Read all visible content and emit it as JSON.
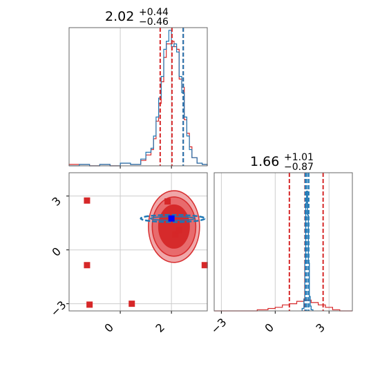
{
  "titles": {
    "param1": {
      "value": "2.02",
      "plus": "+0.44",
      "minus": "−0.46"
    },
    "param2": {
      "value": "1.66",
      "plus": "+1.01",
      "minus": "−0.87"
    }
  },
  "colors": {
    "red": "#d62728",
    "blue": "#1f77b4",
    "grid": "#cccccc",
    "marker_blue": "#0000ff"
  },
  "chart_data": [
    {
      "type": "histogram",
      "panel": "top-left",
      "parameter": 1,
      "xlim": [
        -2.0,
        3.4
      ],
      "grid": true,
      "quantiles": {
        "red": [
          1.56,
          2.02,
          2.46
        ],
        "blue": [
          2.42
        ]
      },
      "bins": [
        -2.0,
        -1.6,
        -1.2,
        -0.8,
        -0.4,
        0.0,
        0.4,
        0.8,
        1.0,
        1.2,
        1.3,
        1.4,
        1.5,
        1.6,
        1.7,
        1.8,
        1.9,
        2.0,
        2.1,
        2.2,
        2.3,
        2.4,
        2.5,
        2.6,
        2.7,
        2.8,
        3.0,
        3.2,
        3.4
      ],
      "series": [
        {
          "color": "red",
          "values": [
            0.01,
            0.01,
            0.0,
            0.01,
            0.0,
            0.02,
            0.01,
            0.04,
            0.08,
            0.12,
            0.2,
            0.33,
            0.46,
            0.62,
            0.8,
            0.9,
            0.9,
            0.92,
            0.88,
            0.86,
            0.64,
            0.58,
            0.34,
            0.24,
            0.14,
            0.06,
            0.02,
            0.01
          ]
        },
        {
          "color": "blue",
          "values": [
            0.0,
            0.01,
            0.0,
            0.01,
            0.0,
            0.02,
            0.01,
            0.05,
            0.1,
            0.13,
            0.22,
            0.36,
            0.5,
            0.66,
            0.86,
            0.92,
            1.0,
            0.88,
            0.9,
            0.84,
            0.66,
            0.54,
            0.36,
            0.22,
            0.12,
            0.06,
            0.02,
            0.01
          ]
        }
      ]
    },
    {
      "type": "scatter",
      "panel": "bottom-left",
      "xlim": [
        -2.0,
        3.4
      ],
      "ylim": [
        -3.4,
        4.3
      ],
      "xticks": [
        "0",
        "2"
      ],
      "yticks": [
        "3",
        "0",
        "−3"
      ],
      "grid": true,
      "red_points": [
        [
          -1.3,
          2.75
        ],
        [
          -1.3,
          -0.85
        ],
        [
          -1.2,
          -3.05
        ],
        [
          0.45,
          -3.0
        ],
        [
          1.85,
          2.7
        ],
        [
          2.15,
          0.85
        ],
        [
          2.3,
          1.1
        ],
        [
          3.3,
          -0.85
        ]
      ],
      "blue_point": [
        2.0,
        1.75
      ],
      "red_contours": [
        {
          "cx": 2.1,
          "cy": 1.3,
          "rx": 1.0,
          "ry": 2.0
        },
        {
          "cx": 2.1,
          "cy": 1.3,
          "rx": 0.85,
          "ry": 1.65
        },
        {
          "cx": 2.1,
          "cy": 1.3,
          "rx": 0.6,
          "ry": 1.2
        }
      ],
      "blue_contour": {
        "cx": 2.05,
        "cy": 1.75,
        "rx": 1.25,
        "ry": 0.2
      }
    },
    {
      "type": "histogram",
      "panel": "bottom-right",
      "parameter": 2,
      "xlim": [
        -3.4,
        4.3
      ],
      "xticks": [
        "−3",
        "0",
        "3"
      ],
      "grid": true,
      "quantiles": {
        "red": [
          0.79,
          1.66,
          2.67
        ],
        "blue": [
          1.68,
          1.77,
          1.87
        ]
      },
      "red_bins": [
        -3.4,
        -1.0,
        -0.4,
        0.0,
        0.4,
        0.8,
        1.2,
        1.6,
        2.0,
        2.4,
        2.8,
        3.2,
        3.6,
        4.3
      ],
      "red_values": [
        0.0,
        0.01,
        0.02,
        0.03,
        0.05,
        0.06,
        0.08,
        0.09,
        0.07,
        0.05,
        0.03,
        0.01,
        0.0
      ],
      "blue_bins": [
        1.5,
        1.6,
        1.65,
        1.7,
        1.75,
        1.8,
        1.85,
        1.9,
        1.95,
        2.0,
        2.1
      ],
      "blue_values": [
        0.02,
        0.1,
        0.4,
        0.9,
        1.0,
        0.8,
        0.4,
        0.12,
        0.04,
        0.01
      ]
    }
  ]
}
